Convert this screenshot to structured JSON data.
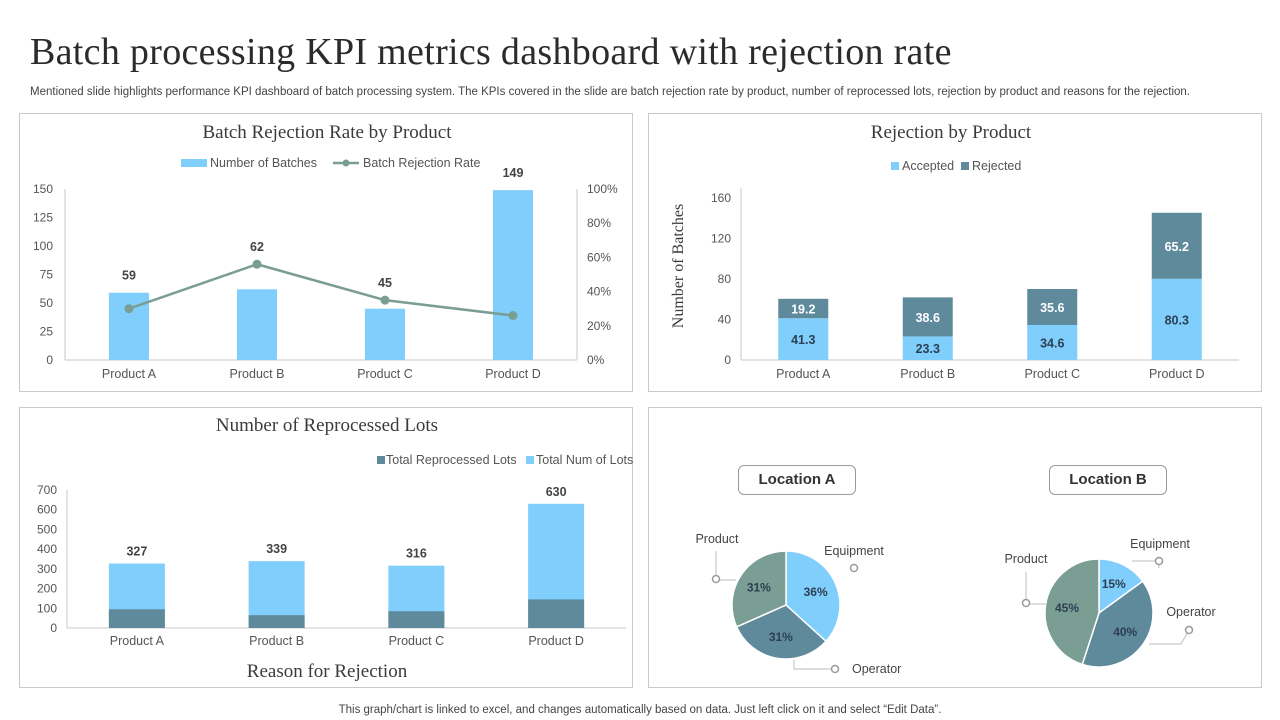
{
  "page": {
    "title": "Batch processing KPI metrics dashboard with rejection rate",
    "subtitle": "Mentioned slide highlights performance KPI dashboard of batch processing system. The KPIs covered in the slide are batch rejection rate by product, number of reprocessed lots, rejection by product and reasons for the rejection.",
    "footer": "This graph/chart is linked to excel,  and changes automatically based on data. Just left click on it and select “Edit Data”."
  },
  "colors": {
    "light_blue": "#7fcefc",
    "slate": "#5f8a9c",
    "line": "#7a9e93",
    "axis": "#c8c8c8"
  },
  "chart_data": [
    {
      "type": "bar",
      "title": "Batch Rejection Rate by Product",
      "categories": [
        "Product A",
        "Product B",
        "Product C",
        "Product D"
      ],
      "series": [
        {
          "name": "Number of Batches",
          "type": "bar",
          "axis": "left",
          "values": [
            59,
            62,
            45,
            149
          ]
        },
        {
          "name": "Batch Rejection Rate",
          "type": "line",
          "axis": "right",
          "values": [
            30,
            56,
            35,
            26
          ]
        }
      ],
      "data_labels": [
        "59",
        "62",
        "45",
        "149"
      ],
      "yticks_left": [
        "0",
        "25",
        "50",
        "75",
        "100",
        "125",
        "150"
      ],
      "yticks_right": [
        "0%",
        "20%",
        "40%",
        "60%",
        "80%",
        "100%"
      ],
      "ylim_left": [
        0,
        150
      ],
      "ylim_right": [
        0,
        100
      ],
      "legend": "top"
    },
    {
      "type": "bar",
      "stacked": true,
      "title": "Rejection by Product",
      "ylabel": "Number of Batches",
      "categories": [
        "Product A",
        "Product B",
        "Product C",
        "Product D"
      ],
      "series": [
        {
          "name": "Accepted",
          "values": [
            41.3,
            23.3,
            34.6,
            80.3
          ]
        },
        {
          "name": "Rejected",
          "values": [
            19.2,
            38.6,
            35.6,
            65.2
          ]
        }
      ],
      "yticks": [
        "0",
        "40",
        "80",
        "120",
        "160"
      ],
      "ylim": [
        0,
        170
      ],
      "legend": "top"
    },
    {
      "type": "bar",
      "title": "Number of Reprocessed Lots",
      "xlabel": "Reason for Rejection",
      "categories": [
        "Product A",
        "Product B",
        "Product C",
        "Product D"
      ],
      "series": [
        {
          "name": "Total Reprocessed Lots",
          "values": [
            95,
            65,
            85,
            145
          ]
        },
        {
          "name": "Total Num of Lots",
          "values": [
            327,
            339,
            316,
            630
          ]
        }
      ],
      "data_labels": [
        "327",
        "339",
        "316",
        "630"
      ],
      "yticks": [
        "0",
        "100",
        "200",
        "300",
        "400",
        "500",
        "600",
        "700"
      ],
      "ylim": [
        0,
        700
      ],
      "legend": "top-right"
    },
    {
      "type": "pie",
      "title": "Location A",
      "slices": [
        {
          "name": "Equipment",
          "value": 36,
          "label": "36%"
        },
        {
          "name": "Operator",
          "value": 31,
          "label": "31%"
        },
        {
          "name": "Product",
          "value": 31,
          "label": "31%"
        }
      ]
    },
    {
      "type": "pie",
      "title": "Location B",
      "slices": [
        {
          "name": "Equipment",
          "value": 15,
          "label": "15%"
        },
        {
          "name": "Operator",
          "value": 40,
          "label": "40%"
        },
        {
          "name": "Product",
          "value": 45,
          "label": "45%"
        }
      ]
    }
  ]
}
